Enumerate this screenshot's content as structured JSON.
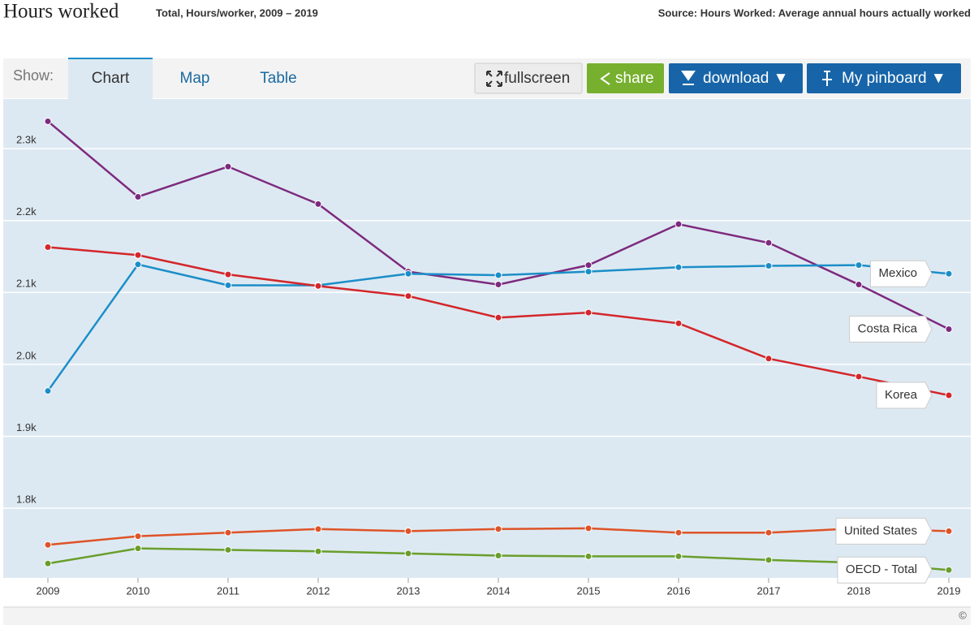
{
  "chart_data": {
    "type": "line",
    "title": "Hours worked",
    "subtitle": "Total, Hours/worker, 2009 – 2019",
    "source": "Source: Hours Worked: Average annual hours actually worked",
    "categories": [
      "2009",
      "2010",
      "2011",
      "2012",
      "2013",
      "2014",
      "2015",
      "2016",
      "2017",
      "2018",
      "2019"
    ],
    "series": [
      {
        "name": "Costa Rica",
        "color": "#7d2a7e",
        "values": [
          2338,
          2233,
          2275,
          2223,
          2129,
          2111,
          2138,
          2195,
          2169,
          2111,
          2049
        ]
      },
      {
        "name": "Mexico",
        "color": "#1b8ec8",
        "values": [
          1963,
          2139,
          2110,
          2110,
          2126,
          2124,
          2129,
          2135,
          2137,
          2138,
          2126
        ]
      },
      {
        "name": "Korea",
        "color": "#d3262b",
        "values": [
          2163,
          2152,
          2125,
          2109,
          2095,
          2065,
          2072,
          2057,
          2008,
          1983,
          1957
        ]
      },
      {
        "name": "United States",
        "color": "#de5327",
        "values": [
          1749,
          1761,
          1766,
          1771,
          1768,
          1771,
          1772,
          1766,
          1766,
          1772,
          1768
        ]
      },
      {
        "name": "OECD - Total",
        "color": "#6a9e2c",
        "values": [
          1723,
          1744,
          1742,
          1740,
          1737,
          1734,
          1733,
          1733,
          1728,
          1724,
          1714
        ]
      }
    ],
    "ylim": [
      1703,
      2369
    ],
    "yticks": [
      {
        "value": 1800,
        "label": "1.8k"
      },
      {
        "value": 1900,
        "label": "1.9k"
      },
      {
        "value": 2000,
        "label": "2.0k"
      },
      {
        "value": 2100,
        "label": "2.1k"
      },
      {
        "value": 2200,
        "label": "2.2k"
      },
      {
        "value": 2300,
        "label": "2.3k"
      }
    ],
    "grid": true
  },
  "ui": {
    "show": "Show:",
    "tabs": [
      "Chart",
      "Map",
      "Table"
    ],
    "fullscreen": "fullscreen",
    "share": "share",
    "download": "download ▼",
    "pinboard": "My pinboard ▼",
    "copyright": "©"
  }
}
